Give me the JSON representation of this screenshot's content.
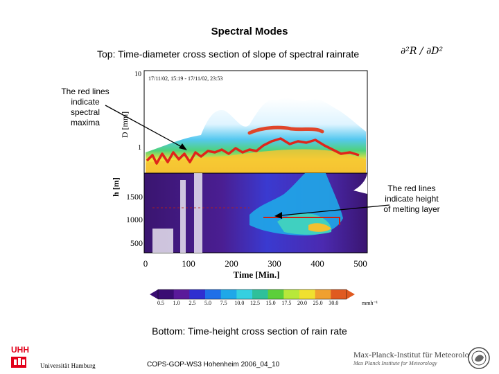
{
  "slide": {
    "title": "Spectral Modes",
    "top_caption": "Top: Time-diameter cross section of slope of spectral rainrate",
    "formula": "∂²R / ∂D²",
    "note_left": "The red lines indicate spectral maxima",
    "note_right": "The red lines indicate height of melting layer",
    "bottom_caption": "Bottom: Time-height cross section of rain rate",
    "footer": "COPS-GOP-WS3 Hohenheim 2006_04_10"
  },
  "figure": {
    "timestamp": "17/11/02, 15:19 - 17/11/02, 23:53",
    "top_ylabel": "D [mm]",
    "top_ticks": [
      "10",
      "1"
    ],
    "bottom_ylabel": "h [m]",
    "bottom_ticks": [
      "1500",
      "1000",
      "500"
    ],
    "xlabel": "Time [Min.]",
    "x_ticks": [
      "0",
      "100",
      "200",
      "300",
      "400",
      "500"
    ],
    "colorbar_ticks": [
      "0.5",
      "1.0",
      "2.5",
      "5.0",
      "7.5",
      "10.0",
      "12.5",
      "15.0",
      "17.5",
      "20.0",
      "25.0",
      "30.0"
    ],
    "colorbar_unit": "mmh⁻¹",
    "colorbar_colors": [
      "#3a0d73",
      "#5a1a9a",
      "#2f2fd0",
      "#1f6fe8",
      "#1fa8e8",
      "#35d0e0",
      "#2fc09a",
      "#5ccf3a",
      "#b8e83a",
      "#f0e030",
      "#f0a030",
      "#e05a20"
    ]
  },
  "logos": {
    "uhh_mark": "UHH",
    "uhh_name": "Universität Hamburg",
    "mpi_name": "Max-Planck-Institut für Meteorologie",
    "mpi_sub": "Max Planck Institute for Meteorology"
  }
}
